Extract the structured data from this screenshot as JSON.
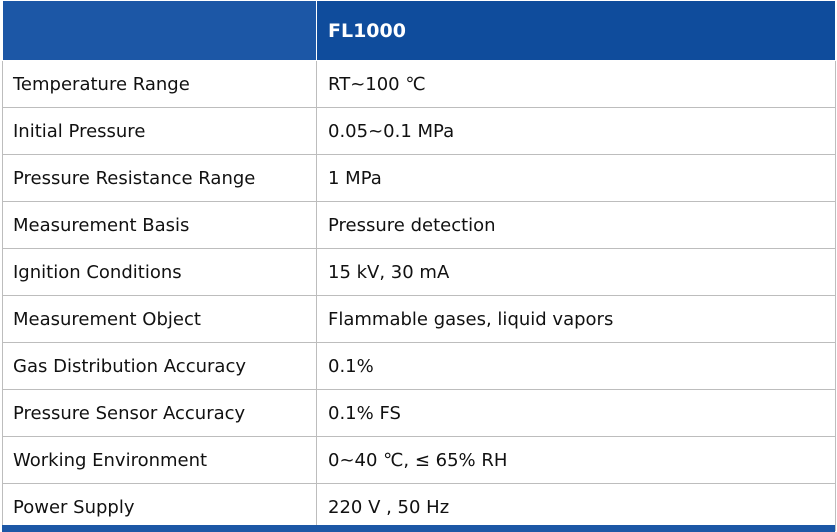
{
  "table": {
    "header": {
      "col1": "",
      "col2": "FL1000"
    },
    "rows": [
      {
        "label": "Temperature Range",
        "value": "RT~100 ℃"
      },
      {
        "label": "Initial Pressure",
        "value": "0.05~0.1 MPa"
      },
      {
        "label": "Pressure Resistance Range",
        "value": "1 MPa"
      },
      {
        "label": "Measurement Basis",
        "value": "Pressure detection"
      },
      {
        "label": "Ignition Conditions",
        "value": "15 kV, 30 mA"
      },
      {
        "label": "Measurement Object",
        "value": "Flammable gases, liquid vapors"
      },
      {
        "label": "Gas Distribution Accuracy",
        "value": "0.1%"
      },
      {
        "label": "Pressure Sensor Accuracy",
        "value": "0.1% FS"
      },
      {
        "label": "Working Environment",
        "value": "0~40 ℃, ≤ 65% RH"
      },
      {
        "label": "Power Supply",
        "value": "220 V , 50 Hz"
      }
    ]
  },
  "colors": {
    "header_blue": "#0f4c9c",
    "border_gray": "#bdbdbd"
  }
}
